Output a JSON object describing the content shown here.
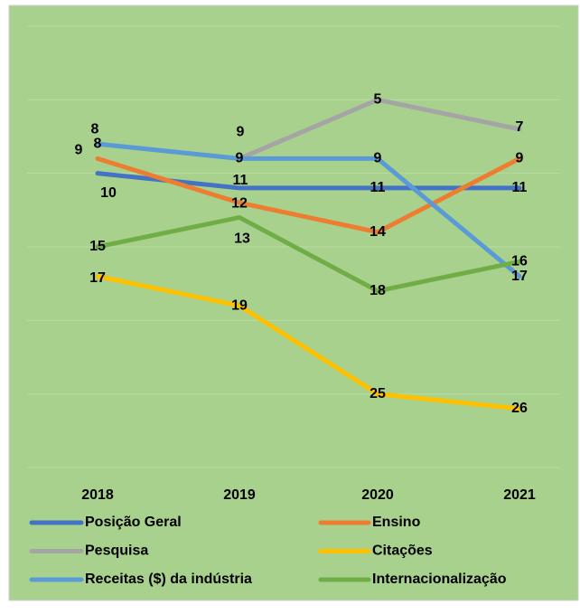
{
  "chart_data": {
    "type": "line",
    "categories": [
      "2018",
      "2019",
      "2020",
      "2021"
    ],
    "series": [
      {
        "name": "Posição Geral",
        "color": "#4472c4",
        "values": [
          10,
          11,
          11,
          11
        ]
      },
      {
        "name": "Ensino",
        "color": "#ed7d31",
        "values": [
          9,
          12,
          14,
          9
        ]
      },
      {
        "name": "Pesquisa",
        "color": "#a5a5a5",
        "values": [
          8,
          9,
          5,
          7
        ]
      },
      {
        "name": "Citações",
        "color": "#ffc000",
        "values": [
          17,
          19,
          25,
          26
        ]
      },
      {
        "name": "Receitas ($) da indústria",
        "color": "#5b9bd5",
        "values": [
          8,
          9,
          9,
          17
        ]
      },
      {
        "name": "Internacionalização",
        "color": "#70ad47",
        "values": [
          15,
          13,
          18,
          16
        ]
      }
    ],
    "ylim": [
      0,
      30
    ],
    "yticks": [
      0,
      5,
      10,
      15,
      20,
      25,
      30
    ],
    "y_reversed": true,
    "grid": true
  }
}
